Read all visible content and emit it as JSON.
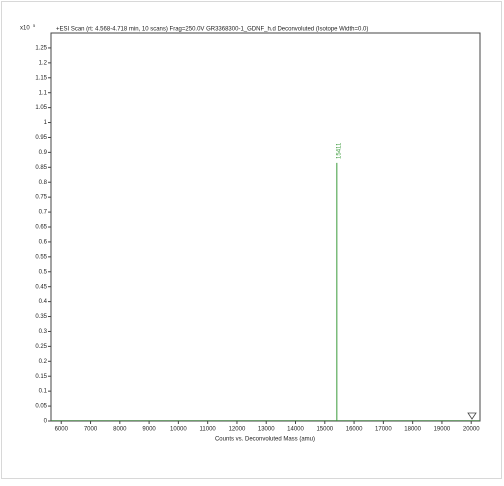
{
  "chart_data": {
    "type": "stick",
    "title": "+ESI Scan (rt: 4.568-4.718 min, 10 scans) Frag=250.0V GR3368300-1_GDNF_h.d  Deconvoluted (Isotope Width=0.0)",
    "y_scale": "x10",
    "y_exponent": "5",
    "x_label": "Counts vs. Deconvoluted Mass (amu)",
    "x": [
      15411
    ],
    "values": [
      0.865
    ],
    "color": "#3a9a3a",
    "xlim": [
      5650,
      20300
    ],
    "ylim": [
      0,
      1.3
    ],
    "xticks": [
      6000,
      7000,
      8000,
      9000,
      10000,
      11000,
      12000,
      13000,
      14000,
      15000,
      16000,
      17000,
      18000,
      19000,
      20000
    ],
    "yticks": [
      0,
      0.05,
      0.1,
      0.15,
      0.2,
      0.25,
      0.3,
      0.35,
      0.4,
      0.45,
      0.5,
      0.55,
      0.6,
      0.65,
      0.7,
      0.75,
      0.8,
      0.85,
      0.9,
      0.95,
      1,
      1.05,
      1.1,
      1.15,
      1.2,
      1.25
    ]
  }
}
